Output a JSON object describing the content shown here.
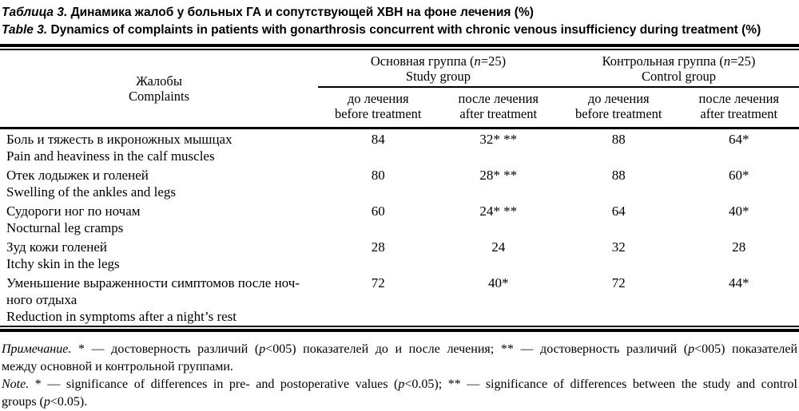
{
  "title": {
    "ru_segments": [
      {
        "t": "Таблица 3.",
        "i": true
      },
      {
        "t": " Динамика жалоб у больных ГА и сопутствующей ХВН на фоне лечения (%)",
        "i": false
      }
    ],
    "en_segments": [
      {
        "t": "Table 3.",
        "i": true
      },
      {
        "t": " Dynamics of complaints in patients with gonarthrosis concurrent with chronic venous insufficiency during treatment (%)",
        "i": false
      }
    ]
  },
  "table": {
    "header": {
      "complaints_ru": "Жалобы",
      "complaints_en": "Complaints",
      "groups": [
        {
          "ru_segments": [
            {
              "t": "Основная группа (",
              "i": false
            },
            {
              "t": "n",
              "i": true
            },
            {
              "t": "=25)",
              "i": false
            }
          ],
          "en": "Study group"
        },
        {
          "ru_segments": [
            {
              "t": "Контрольная группа (",
              "i": false
            },
            {
              "t": "n",
              "i": true
            },
            {
              "t": "=25)",
              "i": false
            }
          ],
          "en": "Control group"
        }
      ],
      "subcolumns": [
        {
          "ru": "до лечения",
          "en": "before treatment"
        },
        {
          "ru": "после лечения",
          "en": "after treatment"
        },
        {
          "ru": "до лечения",
          "en": "before treatment"
        },
        {
          "ru": "после лечения",
          "en": "after treatment"
        }
      ]
    },
    "rows": [
      {
        "ru": "Боль и тяжесть в икроножных мышцах",
        "en": "Pain and heaviness in the calf muscles",
        "values": [
          "84",
          "32* **",
          "88",
          "64*"
        ]
      },
      {
        "ru": "Отек лодыжек и голеней",
        "en": "Swelling of the ankles and legs",
        "values": [
          "80",
          "28* **",
          "88",
          "60*"
        ]
      },
      {
        "ru": "Судороги ног по ночам",
        "en": "Nocturnal leg cramps",
        "values": [
          "60",
          "24* **",
          "64",
          "40*"
        ]
      },
      {
        "ru": "Зуд кожи голеней",
        "en": "Itchy skin in the legs",
        "values": [
          "28",
          "24",
          "32",
          "28"
        ]
      },
      {
        "ru": "Уменьшение выраженности симптомов после ноч-\nного отдыха",
        "en": "Reduction in symptoms after a night’s rest",
        "values": [
          "72",
          "40*",
          "72",
          "44*"
        ]
      }
    ]
  },
  "footnote": {
    "ru_line1_segments": [
      {
        "t": "Примечание.",
        "i": true
      },
      {
        "t": " * — достоверность различий (",
        "i": false
      },
      {
        "t": "p",
        "i": true
      },
      {
        "t": "<005) показателей до и после лечения; ** — достоверность различий (",
        "i": false
      },
      {
        "t": "p",
        "i": true
      },
      {
        "t": "<005) показателей",
        "i": false
      }
    ],
    "ru_line2_segments": [
      {
        "t": "между основной и контрольной группами.",
        "i": false
      }
    ],
    "en_line1_segments": [
      {
        "t": "Note.",
        "i": true
      },
      {
        "t": " * — significance of differences in pre- and postoperative values (",
        "i": false
      },
      {
        "t": "p",
        "i": true
      },
      {
        "t": "<0.05); ** — significance of differences between the study and control",
        "i": false
      }
    ],
    "en_line2_segments": [
      {
        "t": "groups (",
        "i": false
      },
      {
        "t": "p",
        "i": true
      },
      {
        "t": "<0.05).",
        "i": false
      }
    ]
  }
}
